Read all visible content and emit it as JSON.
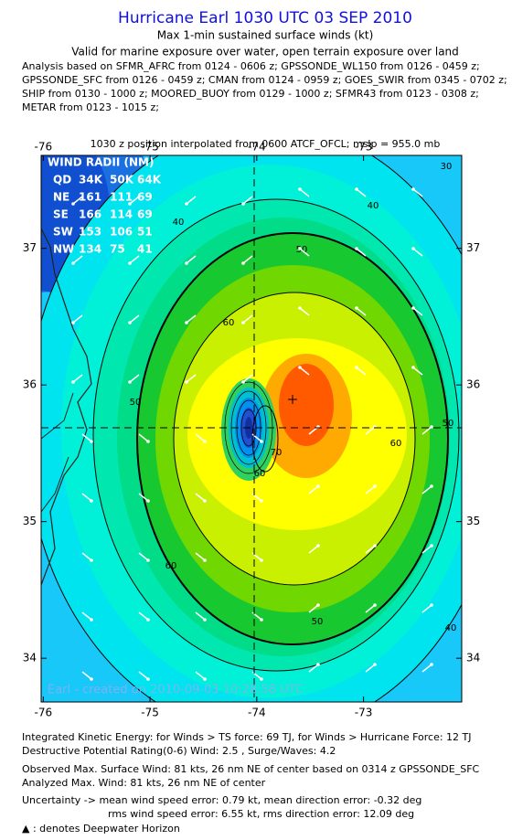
{
  "header": {
    "title": "Hurricane Earl 1030 UTC 03 SEP 2010",
    "subtitle": "Max 1-min sustained surface winds (kt)",
    "validity": "Valid for marine exposure over water, open terrain exposure over land",
    "analysis": [
      "Analysis based on SFMR_AFRC from 0124 - 0606 z; GPSSONDE_WL150 from 0126 - 0459 z;",
      "GPSSONDE_SFC from 0126 - 0459 z; CMAN from 0124 - 0959 z; GOES_SWIR from 0345 - 0702 z;",
      "SHIP from 0130 - 1000 z; MOORED_BUOY from 0129 - 1000 z; SFMR43 from 0123 - 0308 z;",
      "METAR from 0123 - 1015 z;"
    ],
    "position_note": "1030 z position interpolated from 0600 ATCF_OFCL; mslp = 955.0 mb"
  },
  "map": {
    "xlim": [
      -76.02,
      -72.08
    ],
    "ylim": [
      33.68,
      37.68
    ],
    "xticks": [
      -76,
      -75,
      -74,
      -73
    ],
    "yticks": [
      34,
      35,
      36,
      37
    ],
    "contours": [
      {
        "level": 30
      },
      {
        "level": 40
      },
      {
        "level": 50
      },
      {
        "level": 60
      },
      {
        "level": 70
      }
    ],
    "wind_radii": {
      "title": "WIND RADII (NM)",
      "rows": [
        [
          "QD",
          "34K",
          "50K",
          "64K"
        ],
        [
          "NE",
          "161",
          "111",
          "69"
        ],
        [
          "SE",
          "166",
          "114",
          "69"
        ],
        [
          "SW",
          "153",
          "106",
          "51"
        ],
        [
          "NW",
          "134",
          "75",
          "41"
        ]
      ]
    },
    "watermark": "Earl - created on 2010-09-03 10:28:58 UTC"
  },
  "footer": {
    "lines": [
      "Integrated Kinetic Energy:  for Winds > TS force: 69 TJ,  for Winds > Hurricane Force: 12 TJ",
      "Destructive Potential Rating(0-6)   Wind: 2.5 , Surge/Waves: 4.2",
      "Observed Max. Surface Wind: 81 kts, 26 nm NE of center based on 0314 z GPSSONDE_SFC",
      "Analyzed Max. Wind: 81 kts, 26 nm NE of center",
      "Uncertainty -> mean wind speed error: 0.79 kt,   mean direction error:  -0.32 deg",
      "rms wind speed error: 6.55 kt,   rms direction error: 12.09 deg",
      "▲ : denotes Deepwater Horizon"
    ]
  }
}
